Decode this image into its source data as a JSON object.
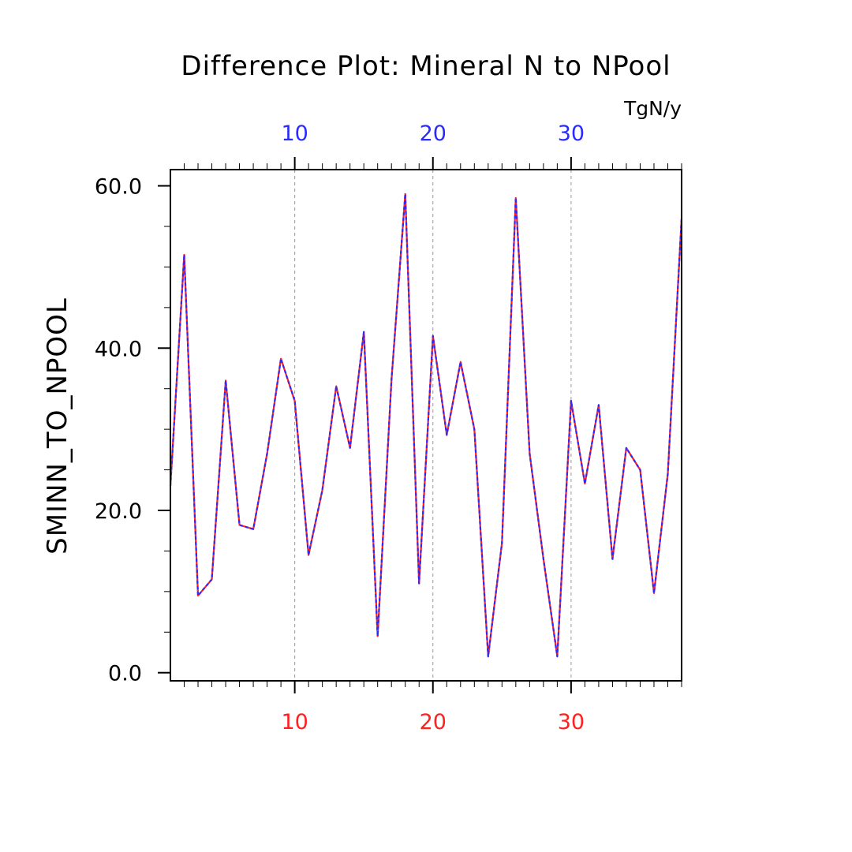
{
  "chart_data": {
    "type": "line",
    "title": "Difference Plot: Mineral N to NPool",
    "units": "TgN/y",
    "ylabel": "SMINN_TO_NPOOL",
    "xlabel": "",
    "xlim": [
      1,
      38
    ],
    "ylim": [
      -1,
      62
    ],
    "x_ticks_bottom": [
      "10",
      "20",
      "30"
    ],
    "x_ticks_top": [
      "10",
      "20",
      "30"
    ],
    "x_tick_values": [
      10,
      20,
      30
    ],
    "y_ticks": [
      "0.0",
      "20.0",
      "40.0",
      "60.0"
    ],
    "y_tick_values": [
      0,
      20,
      40,
      60
    ],
    "grid": "vertical dashed at major x ticks",
    "colors": {
      "series_a": "#ff2020",
      "series_b": "#2a2aff",
      "grid": "#9a9a9a",
      "axis": "#000000"
    },
    "x": [
      1,
      2,
      3,
      4,
      5,
      6,
      7,
      8,
      9,
      10,
      11,
      12,
      13,
      14,
      15,
      16,
      17,
      18,
      19,
      20,
      21,
      22,
      23,
      24,
      25,
      26,
      27,
      28,
      29,
      30,
      31,
      32,
      33,
      34,
      35,
      36,
      37,
      38
    ],
    "series": [
      {
        "values": [
          23.0,
          51.5,
          9.5,
          11.5,
          36.0,
          18.2,
          17.7,
          27.0,
          38.7,
          33.5,
          14.5,
          22.5,
          35.3,
          27.7,
          42.0,
          4.5,
          36.0,
          59.0,
          11.0,
          41.5,
          29.3,
          38.3,
          30.0,
          2.0,
          16.0,
          58.5,
          27.0,
          14.0,
          2.0,
          33.5,
          23.3,
          33.0,
          14.0,
          27.7,
          25.0,
          9.8,
          24.5,
          56.0
        ]
      },
      {
        "values": [
          23.0,
          51.5,
          9.5,
          11.5,
          36.0,
          18.2,
          17.7,
          27.0,
          38.7,
          33.5,
          14.5,
          22.5,
          35.3,
          27.7,
          42.0,
          4.5,
          36.0,
          59.0,
          11.0,
          41.5,
          29.3,
          38.3,
          30.0,
          2.0,
          16.0,
          58.5,
          27.0,
          14.0,
          2.0,
          33.5,
          23.3,
          33.0,
          14.0,
          27.7,
          25.0,
          9.8,
          24.5,
          56.0
        ]
      }
    ]
  }
}
